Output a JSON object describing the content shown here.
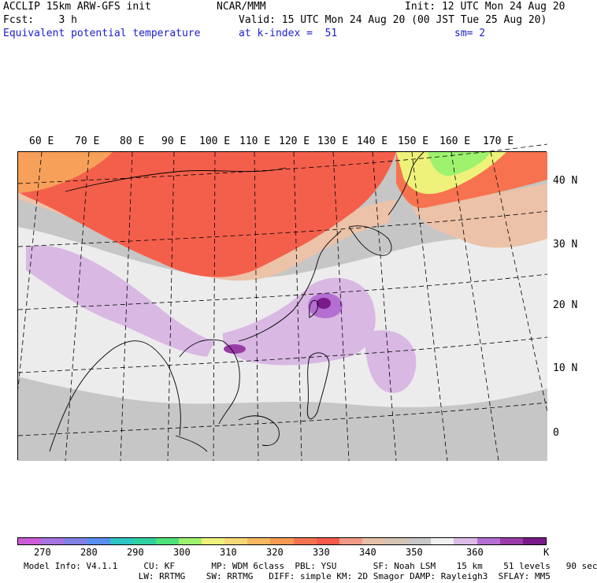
{
  "header": {
    "line1_left": "ACCLIP 15km ARW-GFS init",
    "line1_center": "NCAR/MMM",
    "line1_right": "Init: 12 UTC Mon 24 Aug 20",
    "line2_left": "Fcst:    3 h",
    "line2_right": "Valid: 15 UTC Mon 24 Aug 20 (00 JST Tue 25 Aug 20)",
    "line3_left": "Equivalent potential temperature",
    "line3_center": "at k-index =  51",
    "line3_right": "sm= 2"
  },
  "map": {
    "lon_labels": [
      "60 E",
      "70 E",
      "80 E",
      "90 E",
      "100 E",
      "110 E",
      "120 E",
      "130 E",
      "140 E",
      "150 E",
      "160 E",
      "170 E"
    ],
    "lat_labels": [
      "40 N",
      "30 N",
      "20 N",
      "10 N",
      "0"
    ]
  },
  "colorbar": {
    "colors": [
      "#cc5cd6",
      "#a773e0",
      "#7f7fe6",
      "#5a8ff0",
      "#2ec4c4",
      "#2ed0a0",
      "#4ee07a",
      "#9ef26e",
      "#eef27a",
      "#f5d978",
      "#f5b860",
      "#f79a52",
      "#f77350",
      "#f75a4a",
      "#f09a86",
      "#e6c0a8",
      "#d4c4b4",
      "#c8c8c8",
      "#f0f0f0",
      "#dcbce6",
      "#b56ed2",
      "#9a3ca8",
      "#7a1a8a"
    ],
    "labels": [
      "270",
      "280",
      "290",
      "300",
      "310",
      "320",
      "330",
      "340",
      "350",
      "360",
      "K"
    ]
  },
  "footer": {
    "line1": "Model Info: V4.1.1     CU: KF       MP: WDM 6class  PBL: YSU       SF: Noah LSM    15 km    51 levels   90 sec",
    "line2": "                      LW: RRTMG    SW: RRTMG   DIFF: simple KM: 2D Smagor DAMP: Rayleigh3  SFLAY: MM5"
  }
}
